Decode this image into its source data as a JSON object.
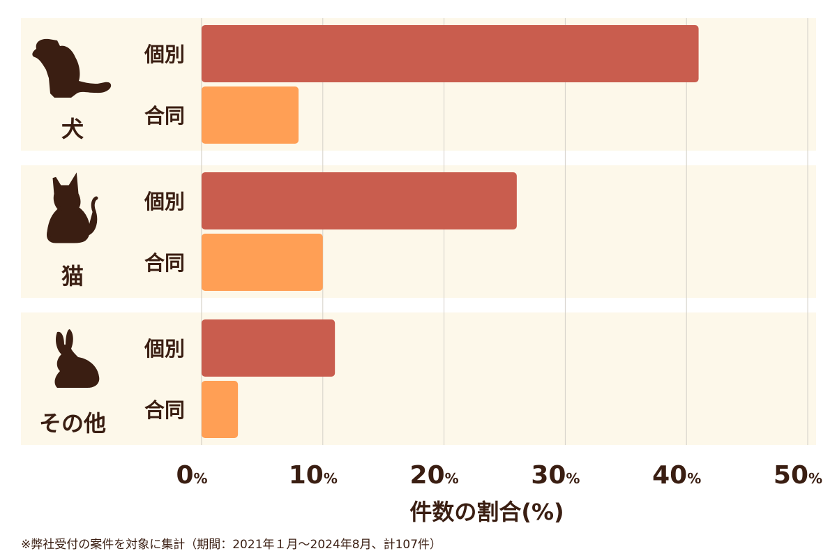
{
  "chart_data": {
    "type": "bar",
    "orientation": "horizontal",
    "groups": [
      {
        "label": "犬",
        "icon": "dog-icon",
        "bars": [
          {
            "label": "個別",
            "value": 41
          },
          {
            "label": "合同",
            "value": 8
          }
        ]
      },
      {
        "label": "猫",
        "icon": "cat-icon",
        "bars": [
          {
            "label": "個別",
            "value": 26
          },
          {
            "label": "合同",
            "value": 10
          }
        ]
      },
      {
        "label": "その他",
        "icon": "rabbit-icon",
        "bars": [
          {
            "label": "個別",
            "value": 11
          },
          {
            "label": "合同",
            "value": 3
          }
        ]
      }
    ],
    "xlim": [
      0,
      50
    ],
    "xticks": [
      0,
      10,
      20,
      30,
      40,
      50
    ],
    "tick_unit": "%",
    "xlabel": "件数の割合(%)",
    "grid": true
  },
  "colors": {
    "individual": "#c95d4e",
    "joint": "#ff9f55",
    "panel": "#fdf8ea",
    "text": "#3a1e12",
    "grid": "#d4d0c8"
  },
  "footnote": "※弊社受付の案件を対象に集計（期間：2021年１月～2024年8月、計107件）"
}
